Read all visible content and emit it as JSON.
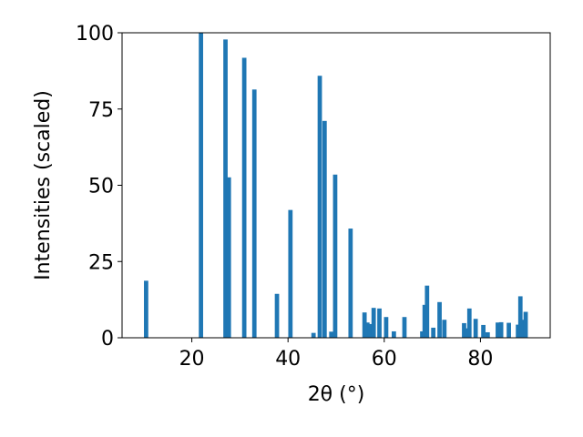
{
  "chart_data": {
    "type": "bar",
    "xlabel": "2θ (°)",
    "ylabel": "Intensities (scaled)",
    "xlim": [
      5.5,
      94.5
    ],
    "ylim": [
      0,
      100
    ],
    "xticks": [
      20,
      40,
      60,
      80
    ],
    "yticks": [
      0,
      25,
      50,
      75,
      100
    ],
    "grid": false,
    "bar_color": "#1f77b4",
    "bar_width": 0.9,
    "series": [
      {
        "x": [
          10.5,
          21.9,
          27.0,
          27.7,
          30.9,
          33.0,
          37.7,
          40.5,
          45.3,
          46.6,
          47.6,
          49.0,
          49.8,
          53.0,
          55.9,
          56.5,
          57.0,
          57.8,
          59.0,
          60.4,
          62.0,
          64.2,
          67.9,
          68.4,
          68.9,
          70.2,
          71.5,
          72.5,
          76.6,
          77.0,
          77.7,
          79.0,
          80.6,
          81.5,
          83.6,
          84.3,
          85.9,
          87.8,
          88.3,
          88.6,
          89.4
        ],
        "values": [
          18.7,
          100.0,
          97.8,
          52.6,
          91.8,
          81.4,
          14.4,
          41.9,
          1.6,
          85.9,
          71.1,
          2.0,
          53.5,
          35.8,
          8.3,
          5.0,
          4.5,
          9.8,
          9.6,
          6.8,
          2.1,
          6.8,
          2.1,
          10.8,
          17.1,
          3.3,
          11.7,
          5.9,
          4.8,
          3.1,
          9.6,
          6.2,
          4.2,
          1.8,
          5.0,
          5.1,
          4.9,
          4.3,
          13.6,
          5.9,
          8.5
        ]
      }
    ]
  }
}
